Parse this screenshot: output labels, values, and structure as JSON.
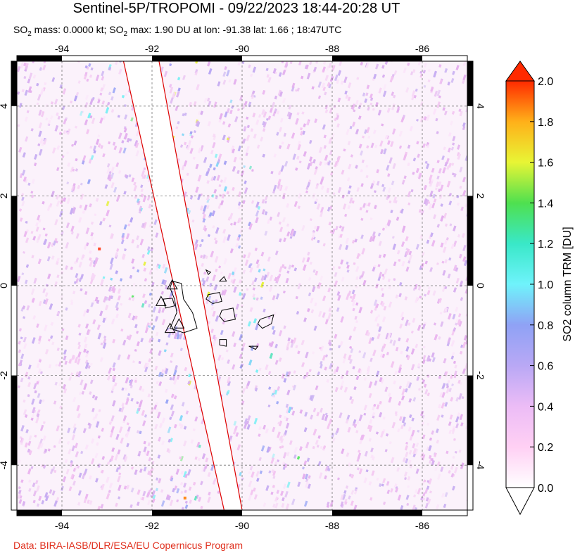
{
  "header": {
    "title": "Sentinel-5P/TROPOMI - 09/22/2023 18:44-20:28 UT",
    "subtitle_parts": [
      "SO",
      "2",
      " mass: 0.0000 kt; SO",
      "2",
      " max: 1.90 DU at lon: -91.38 lat: 1.66 ; 18:47UTC"
    ]
  },
  "map": {
    "lon_range": [
      -95,
      -85
    ],
    "lat_range": [
      -5,
      5
    ],
    "lon_ticks": [
      {
        "value": -94,
        "label": "-94"
      },
      {
        "value": -92,
        "label": "-92"
      },
      {
        "value": -90,
        "label": "-90"
      },
      {
        "value": -88,
        "label": "-88"
      },
      {
        "value": -86,
        "label": "-86"
      }
    ],
    "lat_ticks": [
      {
        "value": 4,
        "label": "4"
      },
      {
        "value": 2,
        "label": "2"
      },
      {
        "value": 0,
        "label": "0"
      },
      {
        "value": -2,
        "label": "-2"
      },
      {
        "value": -4,
        "label": "-4"
      }
    ],
    "gridlines": true,
    "swath_gap": {
      "color": "#dd0000",
      "left_edge": [
        [
          -92.7,
          5.3
        ],
        [
          -90.4,
          -5
        ]
      ],
      "right_edge": [
        [
          -91.9,
          5.3
        ],
        [
          -90.0,
          -5
        ]
      ]
    },
    "volcano_markers": [
      {
        "lon": -91.55,
        "lat": 0.02
      },
      {
        "lon": -91.8,
        "lat": -0.35
      },
      {
        "lon": -91.4,
        "lat": -0.85
      },
      {
        "lon": -91.6,
        "lat": -0.95
      }
    ],
    "coastline_color": "#000000"
  },
  "colorbar": {
    "label": "SO2 column TRM [DU]",
    "min": 0.0,
    "max": 2.0,
    "ticks": [
      "0.0",
      "0.2",
      "0.4",
      "0.6",
      "0.8",
      "1.0",
      "1.2",
      "1.4",
      "1.6",
      "1.8",
      "2.0"
    ],
    "colors": [
      "#ffffff",
      "#ffd0f4",
      "#ecbcf6",
      "#b9a8f5",
      "#8fa2f5",
      "#6ff3fb",
      "#39e8c8",
      "#4fe04f",
      "#e8f535",
      "#ffb019",
      "#ff2a00"
    ],
    "over_color": "#ff2a00",
    "under_color": "#ffffff"
  },
  "footer": {
    "credit": "Data: BIRA-IASB/DLR/ESA/EU Copernicus Program"
  }
}
